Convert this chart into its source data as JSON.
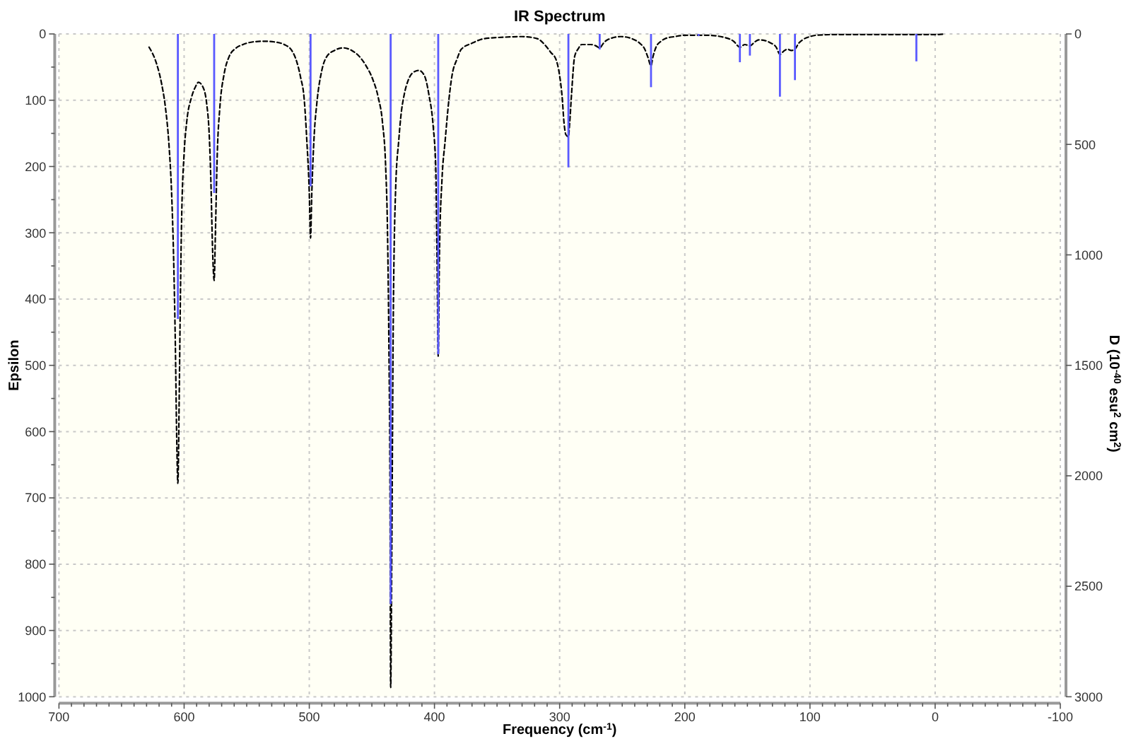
{
  "chart_data": {
    "type": "line",
    "title": "IR Spectrum",
    "xlabel": "Frequency (cm$^{-1}$)",
    "ylabel": "Epsilon",
    "y2label": "D (10$^{-40}$ esu$^{2}$ cm$^{2}$)",
    "xlim": [
      700,
      -100
    ],
    "xticks": [
      700,
      {
        "value": 690,
        "label": null
      },
      {
        "value": 680,
        "label": null
      },
      {
        "value": 670,
        "label": null
      },
      {
        "value": 660,
        "label": null
      },
      {
        "value": 650,
        "label": null
      },
      {
        "value": 640,
        "label": null
      },
      {
        "value": 630,
        "label": null
      },
      {
        "value": 620,
        "label": null
      },
      {
        "value": 610,
        "label": null
      },
      600,
      {
        "value": 590,
        "label": null
      },
      {
        "value": 580,
        "label": null
      },
      {
        "value": 570,
        "label": null
      },
      {
        "value": 560,
        "label": null
      },
      {
        "value": 550,
        "label": null
      },
      {
        "value": 540,
        "label": null
      },
      {
        "value": 530,
        "label": null
      },
      {
        "value": 520,
        "label": null
      },
      {
        "value": 510,
        "label": null
      },
      500,
      {
        "value": 490,
        "label": null
      },
      {
        "value": 480,
        "label": null
      },
      {
        "value": 470,
        "label": null
      },
      {
        "value": 460,
        "label": null
      },
      {
        "value": 450,
        "label": null
      },
      {
        "value": 440,
        "label": null
      },
      {
        "value": 430,
        "label": null
      },
      {
        "value": 420,
        "label": null
      },
      {
        "value": 410,
        "label": null
      },
      400,
      {
        "value": 390,
        "label": null
      },
      {
        "value": 380,
        "label": null
      },
      {
        "value": 370,
        "label": null
      },
      {
        "value": 360,
        "label": null
      },
      {
        "value": 350,
        "label": null
      },
      {
        "value": 340,
        "label": null
      },
      {
        "value": 330,
        "label": null
      },
      {
        "value": 320,
        "label": null
      },
      {
        "value": 310,
        "label": null
      },
      300,
      {
        "value": 290,
        "label": null
      },
      {
        "value": 280,
        "label": null
      },
      {
        "value": 270,
        "label": null
      },
      {
        "value": 260,
        "label": null
      },
      {
        "value": 250,
        "label": null
      },
      {
        "value": 240,
        "label": null
      },
      {
        "value": 230,
        "label": null
      },
      {
        "value": 220,
        "label": null
      },
      {
        "value": 210,
        "label": null
      },
      200,
      {
        "value": 190,
        "label": null
      },
      {
        "value": 180,
        "label": null
      },
      {
        "value": 170,
        "label": null
      },
      {
        "value": 160,
        "label": null
      },
      {
        "value": 150,
        "label": null
      },
      {
        "value": 140,
        "label": null
      },
      {
        "value": 130,
        "label": null
      },
      {
        "value": 120,
        "label": null
      },
      {
        "value": 110,
        "label": null
      },
      100,
      {
        "value": 90,
        "label": null
      },
      {
        "value": 80,
        "label": null
      },
      {
        "value": 70,
        "label": null
      },
      {
        "value": 60,
        "label": null
      },
      {
        "value": 50,
        "label": null
      },
      {
        "value": 40,
        "label": null
      },
      {
        "value": 30,
        "label": null
      },
      {
        "value": 20,
        "label": null
      },
      {
        "value": 10,
        "label": null
      },
      0,
      {
        "value": -10,
        "label": null
      },
      {
        "value": -20,
        "label": null
      },
      {
        "value": -30,
        "label": null
      },
      {
        "value": -40,
        "label": null
      },
      {
        "value": -50,
        "label": null
      },
      {
        "value": -60,
        "label": null
      },
      {
        "value": -70,
        "label": null
      },
      {
        "value": -80,
        "label": null
      },
      {
        "value": -90,
        "label": null
      },
      -100
    ],
    "ylim": [
      1000,
      0
    ],
    "yticks": [
      0,
      {
        "value": 50,
        "label": null
      },
      100,
      {
        "value": 150,
        "label": null
      },
      200,
      {
        "value": 250,
        "label": null
      },
      300,
      {
        "value": 350,
        "label": null
      },
      400,
      {
        "value": 450,
        "label": null
      },
      500,
      {
        "value": 550,
        "label": null
      },
      600,
      {
        "value": 650,
        "label": null
      },
      700,
      {
        "value": 750,
        "label": null
      },
      800,
      {
        "value": 850,
        "label": null
      },
      900,
      {
        "value": 950,
        "label": null
      },
      1000
    ],
    "y2lim": [
      3000,
      0
    ],
    "y2ticks": [
      0,
      500,
      1000,
      1500,
      2000,
      2500,
      3000
    ],
    "grid": true,
    "line_style": "dashed",
    "series": [
      {
        "color": "#000000",
        "x": [
          628,
          622,
          618,
          615,
          612,
          610,
          608.5,
          607,
          606,
          605,
          604,
          603,
          602,
          600,
          598,
          594,
          591,
          588.5,
          585,
          582,
          580,
          578.5,
          577.5,
          576,
          575,
          573.5,
          571.5,
          568,
          564,
          559,
          553,
          545,
          536,
          528,
          520,
          514,
          510,
          507,
          504,
          502,
          500,
          499,
          498,
          496,
          494,
          490,
          486,
          480,
          473,
          466,
          460,
          455,
          449,
          445,
          441.5,
          439,
          437.5,
          436.5,
          435.5,
          435,
          434,
          433,
          431,
          428.5,
          427,
          424,
          421,
          417,
          412.5,
          408,
          404.5,
          401,
          399,
          398,
          397,
          396,
          394,
          391.5,
          388.5,
          386,
          382,
          378.5,
          370,
          360,
          345,
          330,
          318,
          312,
          307,
          303,
          300,
          298,
          296.5,
          295,
          293,
          292,
          290.5,
          288,
          285,
          282.5,
          275,
          271,
          268,
          265,
          262,
          251,
          240,
          236,
          232,
          229.5,
          227,
          225.5,
          223,
          219,
          215.5,
          208,
          200,
          182,
          167,
          161,
          156,
          152,
          148,
          144,
          141,
          136,
          132,
          127,
          124,
          121,
          118,
          115,
          112,
          109,
          106,
          100,
          95,
          80,
          60,
          30,
          15,
          0,
          -8
        ],
        "values": [
          20,
          45,
          75,
          110,
          170,
          240,
          330,
          470,
          600,
          678,
          560,
          400,
          280,
          180,
          134,
          95,
          80,
          73,
          80,
          105,
          150,
          230,
          310,
          372,
          300,
          180,
          112,
          60,
          34,
          22,
          16,
          12,
          11,
          12,
          16,
          25,
          42,
          65,
          100,
          160,
          240,
          308,
          240,
          150,
          105,
          55,
          34,
          25,
          21,
          25,
          34,
          47,
          70,
          95,
          134,
          200,
          300,
          450,
          700,
          986,
          750,
          450,
          233,
          160,
          127,
          90,
          70,
          58,
          55,
          63,
          91,
          140,
          200,
          330,
          486,
          330,
          220,
          162,
          100,
          63,
          38,
          23,
          14,
          7,
          5,
          4,
          7,
          16,
          28,
          38,
          63,
          95,
          134,
          152,
          155,
          135,
          91,
          34,
          22,
          16,
          16,
          18,
          21,
          14,
          9,
          4,
          9,
          14,
          23,
          35,
          48,
          35,
          20,
          11,
          7,
          4,
          2,
          2,
          6,
          11,
          20,
          16,
          18,
          12,
          9,
          10,
          13,
          20,
          31,
          26,
          23,
          25,
          23,
          14,
          9,
          4,
          2,
          1,
          1,
          1,
          1,
          1,
          0
        ]
      },
      {
        "type": "bar",
        "axis": "y2",
        "color": "#5a5aff",
        "x": [
          605,
          576,
          499,
          435,
          397,
          293,
          268,
          227,
          189,
          156,
          148,
          124,
          112,
          15
        ],
        "values": [
          1290,
          720,
          690,
          2580,
          1450,
          604,
          70,
          241,
          10,
          128,
          98,
          284,
          209,
          124
        ]
      }
    ]
  }
}
